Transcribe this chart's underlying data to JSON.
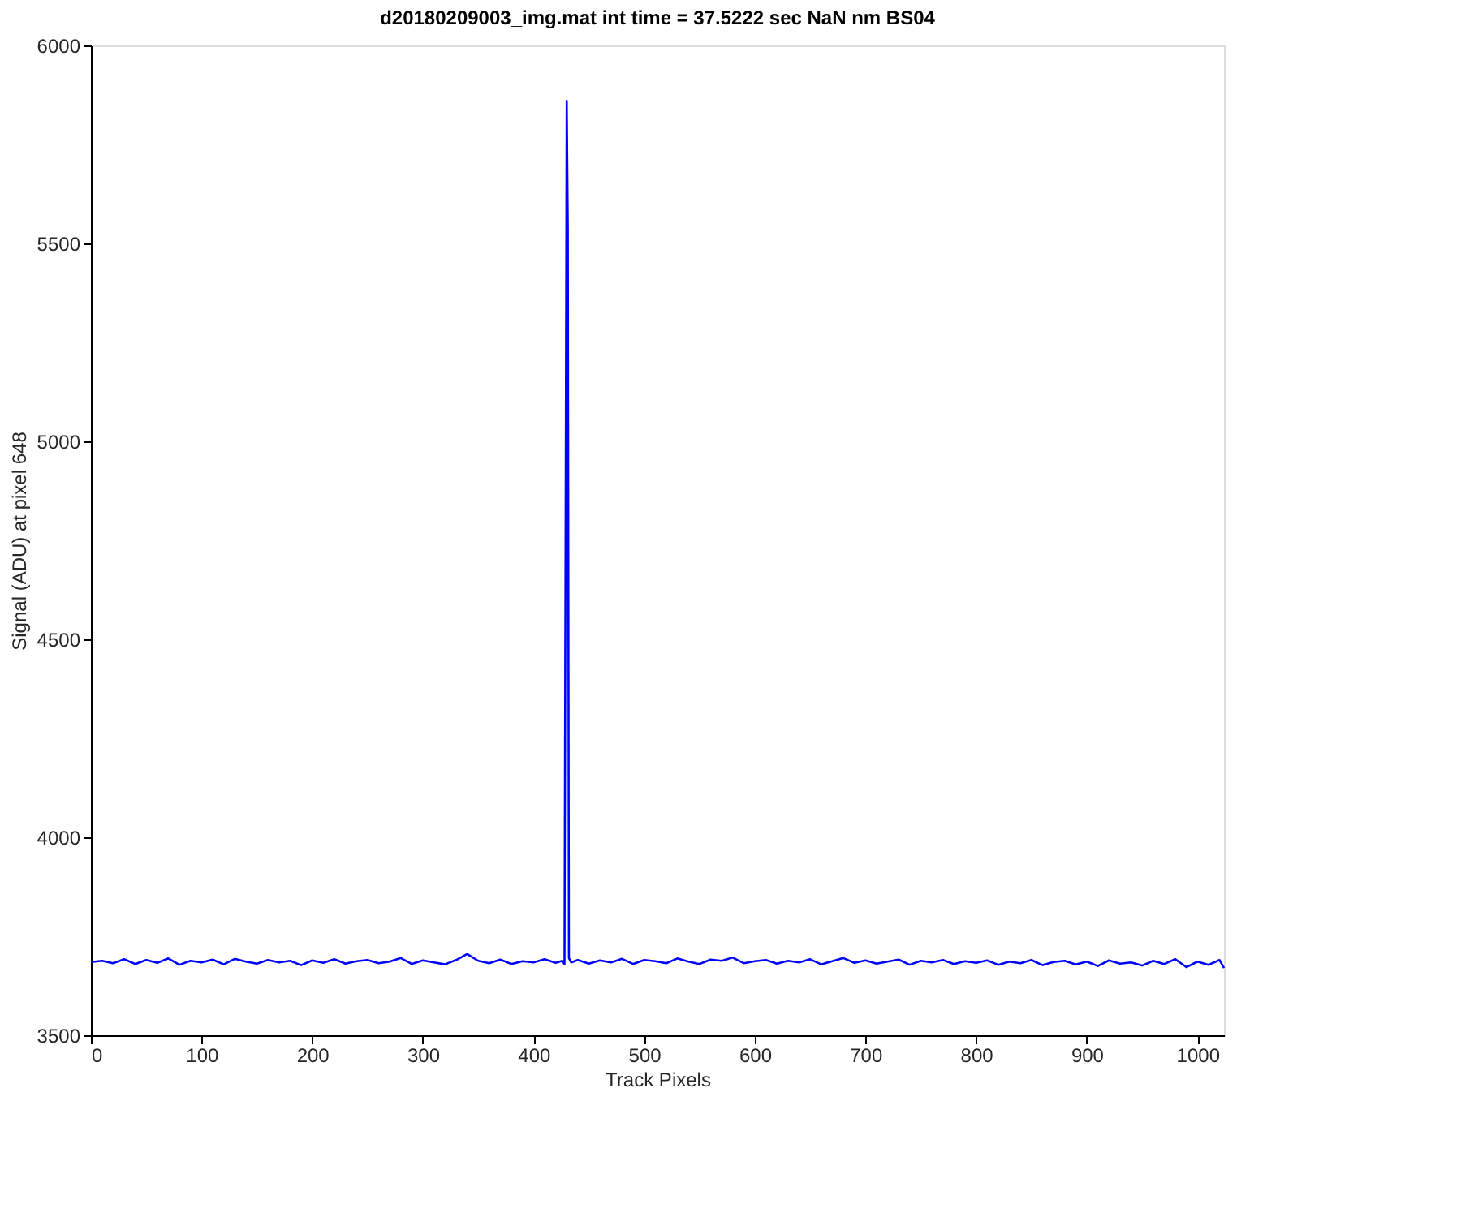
{
  "chart_data": {
    "type": "line",
    "title": "d20180209003_img.mat int time = 37.5222 sec  NaN nm BS04",
    "xlabel": "Track Pixels",
    "ylabel": "Signal (ADU) at pixel 648",
    "x": [
      0,
      10,
      20,
      30,
      40,
      50,
      60,
      70,
      80,
      90,
      100,
      110,
      120,
      130,
      140,
      150,
      160,
      170,
      180,
      190,
      200,
      210,
      220,
      230,
      240,
      250,
      260,
      270,
      280,
      290,
      300,
      310,
      320,
      330,
      340,
      350,
      360,
      370,
      380,
      390,
      400,
      410,
      420,
      426,
      428,
      430,
      431,
      432,
      434,
      440,
      450,
      460,
      470,
      480,
      490,
      500,
      510,
      520,
      530,
      540,
      550,
      560,
      570,
      580,
      590,
      600,
      610,
      620,
      630,
      640,
      650,
      660,
      670,
      680,
      690,
      700,
      710,
      720,
      730,
      740,
      750,
      760,
      770,
      780,
      790,
      800,
      810,
      820,
      830,
      840,
      850,
      860,
      870,
      880,
      890,
      900,
      910,
      920,
      930,
      940,
      950,
      960,
      970,
      980,
      990,
      1000,
      1010,
      1020,
      1024
    ],
    "series": [
      {
        "color": "#0000ff",
        "values": [
          3685,
          3688,
          3682,
          3692,
          3680,
          3690,
          3683,
          3694,
          3678,
          3688,
          3684,
          3691,
          3679,
          3693,
          3686,
          3681,
          3690,
          3684,
          3688,
          3677,
          3689,
          3683,
          3692,
          3681,
          3687,
          3690,
          3682,
          3686,
          3695,
          3680,
          3689,
          3684,
          3679,
          3690,
          3705,
          3688,
          3682,
          3691,
          3680,
          3687,
          3684,
          3692,
          3683,
          3688,
          3680,
          5860,
          5540,
          3695,
          3684,
          3690,
          3681,
          3689,
          3684,
          3693,
          3680,
          3690,
          3687,
          3682,
          3694,
          3686,
          3680,
          3691,
          3688,
          3696,
          3682,
          3687,
          3690,
          3681,
          3688,
          3684,
          3692,
          3679,
          3687,
          3695,
          3683,
          3689,
          3681,
          3686,
          3691,
          3678,
          3688,
          3684,
          3690,
          3680,
          3687,
          3683,
          3689,
          3678,
          3686,
          3682,
          3690,
          3677,
          3685,
          3688,
          3679,
          3686,
          3675,
          3689,
          3681,
          3684,
          3676,
          3688,
          3680,
          3692,
          3672,
          3686,
          3678,
          3690,
          3670
        ]
      }
    ],
    "xlim": [
      0,
      1024
    ],
    "xticks": [
      0,
      100,
      200,
      300,
      400,
      500,
      600,
      700,
      800,
      900,
      1000
    ],
    "ylim": [
      3500,
      6000
    ],
    "yticks": [
      3500,
      4000,
      4500,
      5000,
      5500,
      6000
    ],
    "grid": false,
    "legend": false,
    "marker": "none",
    "line_style": "solid"
  }
}
